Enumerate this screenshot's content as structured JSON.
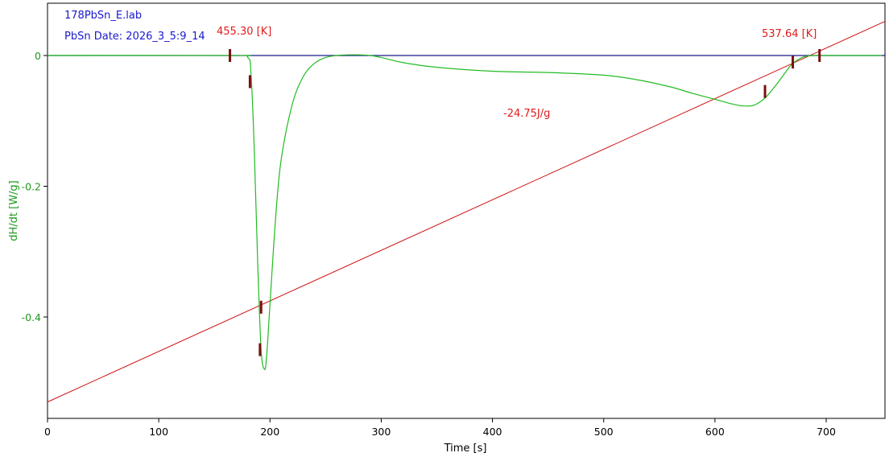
{
  "header": {
    "file_name": "178PbSn_E.lab",
    "sample_info": "PbSn  Date: 2026_3_5:9_14"
  },
  "chart_data": {
    "type": "line",
    "xlabel": "Time [s]",
    "ylabel": "dH/dt  [W/g]",
    "xlim": [
      0,
      750
    ],
    "ylim": [
      -0.56,
      0.08
    ],
    "xticks": [
      0,
      100,
      200,
      300,
      400,
      500,
      600,
      700
    ],
    "xtick_labels": [
      "0",
      "100",
      "200",
      "300",
      "400",
      "500",
      "600",
      "700"
    ],
    "yticks": [
      0,
      -0.2,
      -0.4
    ],
    "ytick_labels": [
      "0",
      "-0.2",
      "-0.4"
    ],
    "grid": false,
    "series": [
      {
        "role": "dH/dt",
        "color": "#22bb22",
        "x": [
          0,
          165,
          180,
          183,
          186,
          189,
          192,
          195,
          197,
          200,
          205,
          210,
          220,
          230,
          240,
          250,
          260,
          270,
          280,
          290,
          300,
          320,
          350,
          400,
          450,
          500,
          530,
          560,
          580,
          600,
          615,
          625,
          635,
          645,
          655,
          665,
          670,
          680,
          690,
          700,
          750
        ],
        "y": [
          0,
          0,
          -0.003,
          -0.03,
          -0.15,
          -0.32,
          -0.45,
          -0.48,
          -0.46,
          -0.38,
          -0.25,
          -0.16,
          -0.075,
          -0.032,
          -0.012,
          -0.003,
          0.0,
          0.001,
          0.001,
          0.0,
          -0.003,
          -0.011,
          -0.018,
          -0.024,
          -0.026,
          -0.03,
          -0.037,
          -0.048,
          -0.058,
          -0.067,
          -0.074,
          -0.077,
          -0.076,
          -0.065,
          -0.045,
          -0.022,
          -0.012,
          -0.002,
          0.0,
          0.0,
          0.0
        ]
      },
      {
        "role": "baseline",
        "color": "#1a1a8a",
        "x": [
          0,
          750
        ],
        "y": [
          0,
          0
        ]
      },
      {
        "role": "temperature",
        "color": "#cc1111",
        "x": [
          0,
          750
        ],
        "y": [
          -0.53,
          0.05
        ]
      }
    ],
    "markers": [
      {
        "x": 164,
        "y": 0.0,
        "color": "#7a1010"
      },
      {
        "x": 182,
        "y": -0.04,
        "color": "#7a1010"
      },
      {
        "x": 192,
        "y": -0.385,
        "color": "#7a1010"
      },
      {
        "x": 191,
        "y": -0.45,
        "color": "#7a1010"
      },
      {
        "x": 645,
        "y": -0.055,
        "color": "#7a1010"
      },
      {
        "x": 670,
        "y": -0.01,
        "color": "#7a1010"
      },
      {
        "x": 694,
        "y": 0.0,
        "color": "#7a1010"
      }
    ],
    "annotations": {
      "onset_temp": "455.30 [K]",
      "end_temp": "537.64 [K]",
      "enthalpy": "-24.75J/g"
    }
  }
}
